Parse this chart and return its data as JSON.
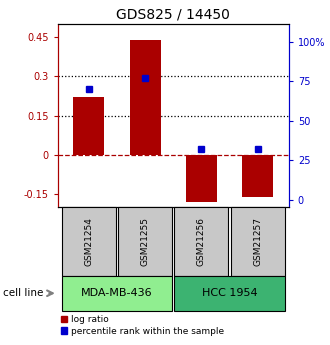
{
  "title": "GDS825 / 14450",
  "samples": [
    "GSM21254",
    "GSM21255",
    "GSM21256",
    "GSM21257"
  ],
  "log_ratios": [
    0.22,
    0.44,
    -0.18,
    -0.16
  ],
  "percentile_ranks": [
    0.7,
    0.77,
    0.32,
    0.32
  ],
  "cell_lines": [
    {
      "label": "MDA-MB-436",
      "samples": [
        0,
        1
      ],
      "color": "#90EE90"
    },
    {
      "label": "HCC 1954",
      "samples": [
        2,
        3
      ],
      "color": "#3CB371"
    }
  ],
  "ylim_left": [
    -0.2,
    0.5
  ],
  "ylim_right": [
    -0.0444,
    1.1111
  ],
  "yticks_left": [
    -0.15,
    0.0,
    0.15,
    0.3,
    0.45
  ],
  "yticks_right": [
    0.0,
    0.25,
    0.5,
    0.75,
    1.0
  ],
  "ytick_labels_left": [
    "-0.15",
    "0",
    "0.15",
    "0.3",
    "0.45"
  ],
  "ytick_labels_right": [
    "0",
    "25",
    "50",
    "75",
    "100%"
  ],
  "hlines_dotted": [
    0.15,
    0.3
  ],
  "hline_dashed": 0.0,
  "bar_color": "#AA0000",
  "dot_color": "#0000CC",
  "bar_width": 0.55,
  "background_color": "#ffffff",
  "sample_box_color": "#C8C8C8",
  "legend_log_ratio": "log ratio",
  "legend_percentile": "percentile rank within the sample"
}
